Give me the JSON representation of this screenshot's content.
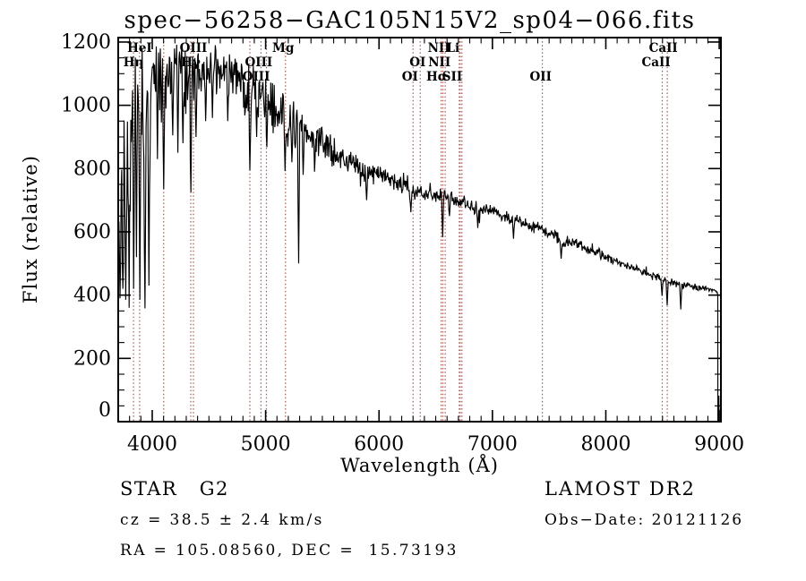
{
  "title": "spec−56258−GAC105N15V2_sp04−066.fits",
  "footer": {
    "class_label": "STAR   G2",
    "cz": "cz = 38.5 ± 2.4 km/s",
    "radec": "RA = 105.08560, DEC =  15.73193",
    "survey": "LAMOST DR2",
    "obs_date": "Obs−Date: 20121126"
  },
  "chart_data": {
    "type": "line",
    "title": "spec-56258-GAC105N15V2_sp04-066.fits",
    "xlabel": "Wavelength (Å)",
    "ylabel": "Flux (relative)",
    "xlim": [
      3700,
      9015
    ],
    "ylim": [
      0,
      1214
    ],
    "x_ticks": [
      4000,
      5000,
      6000,
      7000,
      8000,
      9000
    ],
    "y_ticks": [
      0,
      200,
      400,
      600,
      800,
      1000,
      1200
    ],
    "x_minor_step": 100,
    "y_minor_step": 50,
    "grid": false,
    "line_color": "#000000",
    "marker_line_color": "#a85a50",
    "spectral_lines": [
      {
        "wavelength": 3835,
        "label": "Hη",
        "row": 2,
        "label_dx": 0
      },
      {
        "wavelength": 3889,
        "label": "HeI",
        "row": 1,
        "label_dx": 0
      },
      {
        "wavelength": 4101,
        "label": "",
        "row": 0,
        "label_dx": 0
      },
      {
        "wavelength": 4340,
        "label": "Hγ",
        "row": 2,
        "label_dx": 0
      },
      {
        "wavelength": 4363,
        "label": "OIII",
        "row": 1,
        "label_dx": 0
      },
      {
        "wavelength": 4861,
        "label": "",
        "row": 0,
        "label_dx": 0
      },
      {
        "wavelength": 4959,
        "label": "OIII",
        "row": 2,
        "label_dx": -20
      },
      {
        "wavelength": 5007,
        "label": "OIII",
        "row": 3,
        "label_dx": -90
      },
      {
        "wavelength": 5175,
        "label": "Mg",
        "row": 1,
        "label_dx": -20
      },
      {
        "wavelength": 6300,
        "label": "OI",
        "row": 2,
        "label_dx": 40
      },
      {
        "wavelength": 6363,
        "label": "OI",
        "row": 3,
        "label_dx": -90
      },
      {
        "wavelength": 6548,
        "label": "NII",
        "row": 2,
        "label_dx": -15
      },
      {
        "wavelength": 6563,
        "label": "Hα",
        "row": 3,
        "label_dx": -55
      },
      {
        "wavelength": 6583,
        "label": "NII",
        "row": 1,
        "label_dx": -55
      },
      {
        "wavelength": 6707,
        "label": "Li",
        "row": 1,
        "label_dx": -55
      },
      {
        "wavelength": 6716,
        "label": "SII",
        "row": 3,
        "label_dx": -70
      },
      {
        "wavelength": 6731,
        "label": "",
        "row": 0,
        "label_dx": 0
      },
      {
        "wavelength": 7440,
        "label": "OII",
        "row": 3,
        "label_dx": -15
      },
      {
        "wavelength": 8498,
        "label": "CaII",
        "row": 2,
        "label_dx": -55
      },
      {
        "wavelength": 8542,
        "label": "CaII",
        "row": 1,
        "label_dx": -35
      }
    ],
    "envelope": [
      [
        3703,
        560,
        200
      ],
      [
        3710,
        700,
        300
      ],
      [
        3725,
        720,
        310
      ],
      [
        3740,
        760,
        300
      ],
      [
        3760,
        800,
        290
      ],
      [
        3780,
        830,
        300
      ],
      [
        3800,
        900,
        280
      ],
      [
        3820,
        950,
        260
      ],
      [
        3845,
        970,
        250
      ],
      [
        3870,
        1000,
        210
      ],
      [
        3900,
        980,
        250
      ],
      [
        3930,
        950,
        270
      ],
      [
        3960,
        1000,
        220
      ],
      [
        3990,
        1050,
        160
      ],
      [
        4020,
        1080,
        130
      ],
      [
        4060,
        1100,
        115
      ],
      [
        4100,
        1070,
        140
      ],
      [
        4150,
        1110,
        100
      ],
      [
        4200,
        1120,
        92
      ],
      [
        4250,
        1110,
        100
      ],
      [
        4300,
        1085,
        125
      ],
      [
        4350,
        1095,
        105
      ],
      [
        4400,
        1110,
        95
      ],
      [
        4450,
        1120,
        85
      ],
      [
        4500,
        1112,
        88
      ],
      [
        4550,
        1100,
        88
      ],
      [
        4600,
        1110,
        85
      ],
      [
        4650,
        1105,
        85
      ],
      [
        4700,
        1100,
        85
      ],
      [
        4750,
        1090,
        88
      ],
      [
        4800,
        1072,
        95
      ],
      [
        4860,
        1025,
        120
      ],
      [
        4900,
        1050,
        95
      ],
      [
        4950,
        1040,
        92
      ],
      [
        5000,
        1012,
        95
      ],
      [
        5050,
        990,
        90
      ],
      [
        5100,
        970,
        90
      ],
      [
        5170,
        932,
        105
      ],
      [
        5230,
        950,
        82
      ],
      [
        5290,
        930,
        85
      ],
      [
        5350,
        920,
        72
      ],
      [
        5400,
        900,
        65
      ],
      [
        5450,
        890,
        62
      ],
      [
        5500,
        880,
        58
      ],
      [
        5550,
        866,
        54
      ],
      [
        5600,
        852,
        52
      ],
      [
        5650,
        840,
        50
      ],
      [
        5700,
        830,
        48
      ],
      [
        5750,
        820,
        45
      ],
      [
        5800,
        810,
        44
      ],
      [
        5850,
        800,
        40
      ],
      [
        5900,
        788,
        38
      ],
      [
        5950,
        780,
        36
      ],
      [
        6000,
        790,
        34
      ],
      [
        6050,
        780,
        33
      ],
      [
        6100,
        768,
        32
      ],
      [
        6200,
        745,
        30
      ],
      [
        6300,
        726,
        29
      ],
      [
        6400,
        719,
        27
      ],
      [
        6500,
        714,
        26
      ],
      [
        6600,
        708,
        24
      ],
      [
        6700,
        700,
        24
      ],
      [
        6800,
        688,
        24
      ],
      [
        6870,
        668,
        26
      ],
      [
        6950,
        675,
        22
      ],
      [
        7050,
        660,
        22
      ],
      [
        7150,
        643,
        22
      ],
      [
        7250,
        630,
        21
      ],
      [
        7350,
        616,
        20
      ],
      [
        7450,
        605,
        20
      ],
      [
        7550,
        590,
        20
      ],
      [
        7620,
        568,
        24
      ],
      [
        7700,
        568,
        19
      ],
      [
        7800,
        553,
        18
      ],
      [
        7900,
        538,
        18
      ],
      [
        8000,
        522,
        17
      ],
      [
        8100,
        505,
        16
      ],
      [
        8200,
        492,
        15
      ],
      [
        8300,
        478,
        15
      ],
      [
        8400,
        462,
        14
      ],
      [
        8480,
        452,
        14
      ],
      [
        8560,
        440,
        13
      ],
      [
        8650,
        436,
        13
      ],
      [
        8750,
        428,
        12
      ],
      [
        8850,
        421,
        12
      ],
      [
        8950,
        415,
        11
      ],
      [
        8985,
        410,
        10
      ]
    ],
    "absorption_spikes": [
      [
        3718,
        390
      ],
      [
        3742,
        420
      ],
      [
        3768,
        385
      ],
      [
        3797,
        360
      ],
      [
        3835,
        420
      ],
      [
        3862,
        520
      ],
      [
        3889,
        385
      ],
      [
        3935,
        358
      ],
      [
        3970,
        430
      ],
      [
        4045,
        830
      ],
      [
        4101,
        735
      ],
      [
        4180,
        905
      ],
      [
        4226,
        850
      ],
      [
        4270,
        880
      ],
      [
        4340,
        725
      ],
      [
        4385,
        900
      ],
      [
        4470,
        950
      ],
      [
        4530,
        960
      ],
      [
        4668,
        950
      ],
      [
        4861,
        795
      ],
      [
        4920,
        900
      ],
      [
        5012,
        868
      ],
      [
        5170,
        792
      ],
      [
        5232,
        820
      ],
      [
        5292,
        500
      ],
      [
        5330,
        780
      ],
      [
        5432,
        790
      ],
      [
        5890,
        700
      ],
      [
        6280,
        662
      ],
      [
        6563,
        583
      ],
      [
        6620,
        650
      ],
      [
        6870,
        612
      ],
      [
        7185,
        578
      ],
      [
        7605,
        515
      ],
      [
        8498,
        398
      ],
      [
        8542,
        368
      ],
      [
        8662,
        355
      ]
    ]
  }
}
